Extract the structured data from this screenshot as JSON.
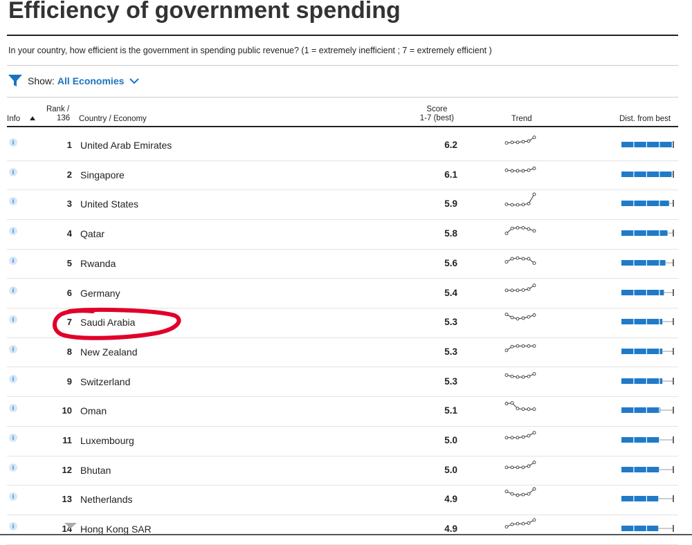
{
  "title": "Efficiency of government spending",
  "question": "In your country, how efficient is the government in spending public revenue? (1 = extremely inefficient ; 7 = extremely efficient )",
  "filter": {
    "label": "Show:",
    "value": "All Economies"
  },
  "headers": {
    "info": "Info",
    "rank_line1": "Rank /",
    "rank_line2": "136",
    "country": "Country / Economy",
    "score_line1": "Score",
    "score_line2": "1-7 (best)",
    "trend": "Trend",
    "dist": "Dist. from best"
  },
  "rows": [
    {
      "rank": "1",
      "country": "United Arab Emirates",
      "score": "6.2",
      "dist_fraction": 1.0,
      "trend": [
        0.35,
        0.4,
        0.4,
        0.45,
        0.5,
        0.8
      ]
    },
    {
      "rank": "2",
      "country": "Singapore",
      "score": "6.1",
      "dist_fraction": 0.98,
      "trend": [
        0.55,
        0.5,
        0.5,
        0.5,
        0.55,
        0.7
      ]
    },
    {
      "rank": "3",
      "country": "United States",
      "score": "5.9",
      "dist_fraction": 0.93,
      "trend": [
        0.15,
        0.1,
        0.1,
        0.12,
        0.2,
        0.95
      ]
    },
    {
      "rank": "4",
      "country": "Qatar",
      "score": "5.8",
      "dist_fraction": 0.9,
      "trend": [
        0.2,
        0.6,
        0.65,
        0.65,
        0.55,
        0.4
      ]
    },
    {
      "rank": "5",
      "country": "Rwanda",
      "score": "5.6",
      "dist_fraction": 0.86,
      "trend": [
        0.3,
        0.55,
        0.6,
        0.55,
        0.55,
        0.2
      ]
    },
    {
      "rank": "6",
      "country": "Germany",
      "score": "5.4",
      "dist_fraction": 0.83,
      "trend": [
        0.4,
        0.4,
        0.4,
        0.42,
        0.5,
        0.8
      ]
    },
    {
      "rank": "7",
      "country": "Saudi Arabia",
      "score": "5.3",
      "dist_fraction": 0.8,
      "trend": [
        0.8,
        0.55,
        0.45,
        0.5,
        0.6,
        0.75
      ]
    },
    {
      "rank": "8",
      "country": "New Zealand",
      "score": "5.3",
      "dist_fraction": 0.8,
      "trend": [
        0.3,
        0.6,
        0.65,
        0.65,
        0.65,
        0.65
      ]
    },
    {
      "rank": "9",
      "country": "Switzerland",
      "score": "5.3",
      "dist_fraction": 0.8,
      "trend": [
        0.7,
        0.6,
        0.55,
        0.55,
        0.6,
        0.8
      ]
    },
    {
      "rank": "10",
      "country": "Oman",
      "score": "5.1",
      "dist_fraction": 0.76,
      "trend": [
        0.75,
        0.8,
        0.35,
        0.3,
        0.3,
        0.3
      ]
    },
    {
      "rank": "11",
      "country": "Luxembourg",
      "score": "5.0",
      "dist_fraction": 0.74,
      "trend": [
        0.4,
        0.4,
        0.4,
        0.45,
        0.55,
        0.8
      ]
    },
    {
      "rank": "12",
      "country": "Bhutan",
      "score": "5.0",
      "dist_fraction": 0.74,
      "trend": [
        0.4,
        0.4,
        0.4,
        0.4,
        0.5,
        0.8
      ]
    },
    {
      "rank": "13",
      "country": "Netherlands",
      "score": "4.9",
      "dist_fraction": 0.72,
      "trend": [
        0.8,
        0.6,
        0.5,
        0.55,
        0.6,
        1.0
      ]
    },
    {
      "rank": "14",
      "country": "Hong Kong SAR",
      "score": "4.9",
      "dist_fraction": 0.72,
      "trend": [
        0.35,
        0.55,
        0.6,
        0.6,
        0.65,
        0.9
      ]
    }
  ],
  "colors": {
    "accent": "#1a73c0",
    "bar": "#1f7bc8",
    "highlight": "#e0002a"
  }
}
